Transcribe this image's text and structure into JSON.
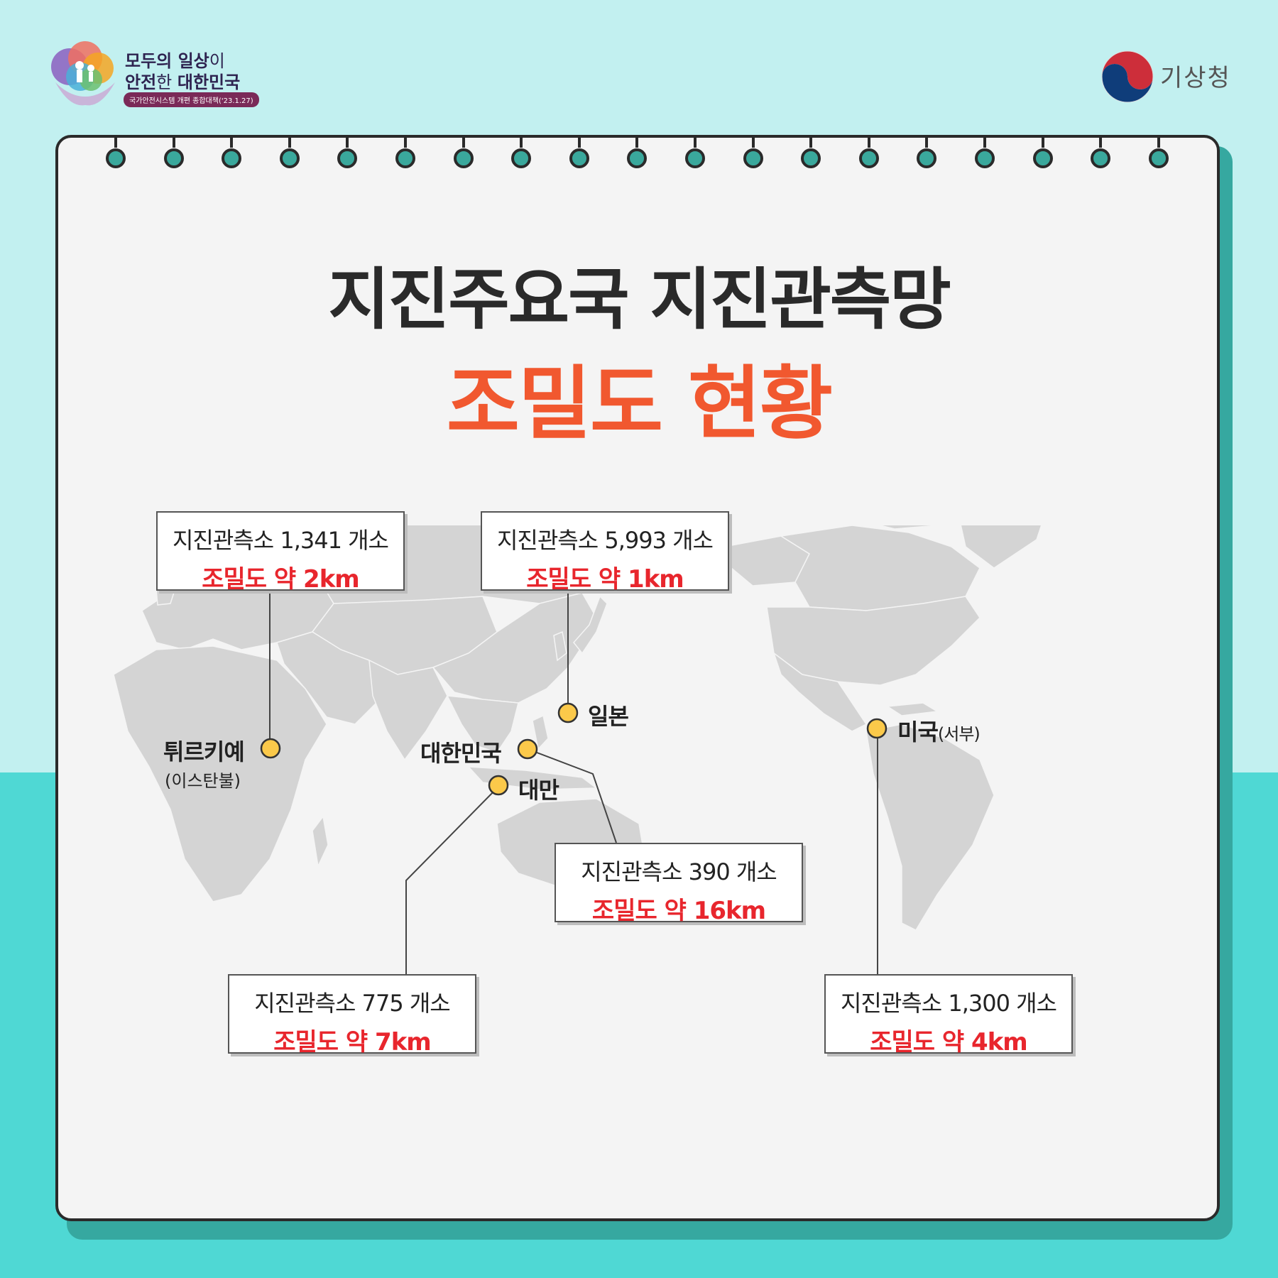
{
  "header": {
    "campaign_line1": "모두의 일상",
    "campaign_line1_suffix": "이",
    "campaign_line2_prefix": "안전",
    "campaign_line2_mid": "한 ",
    "campaign_line2": "대한민국",
    "campaign_tag": "국가안전시스템 개편 종합대책('23.1.27)",
    "agency": "기상청"
  },
  "title": {
    "line1": "지진주요국 지진관측망",
    "line2": "조밀도 현황"
  },
  "colors": {
    "title_accent": "#f1582f",
    "density_red": "#e8262d",
    "marker": "#fbc94a",
    "background_top": "#c2f0f0",
    "background_bottom": "#4fd8d4"
  },
  "countries": [
    {
      "label": "튀르키예",
      "sub": "(이스탄불)",
      "stations": "지진관측소 1,341 개소",
      "density": "조밀도 약 2km"
    },
    {
      "label": "일본",
      "stations": "지진관측소 5,993 개소",
      "density": "조밀도 약 1km"
    },
    {
      "label": "대한민국",
      "stations": "지진관측소  390 개소",
      "density": "조밀도 약 16km"
    },
    {
      "label": "대만",
      "stations": "지진관측소 775 개소",
      "density": "조밀도 약 7km"
    },
    {
      "label": "미국",
      "sub": "(서부)",
      "stations": "지진관측소 1,300 개소",
      "density": "조밀도 약 4km"
    }
  ]
}
